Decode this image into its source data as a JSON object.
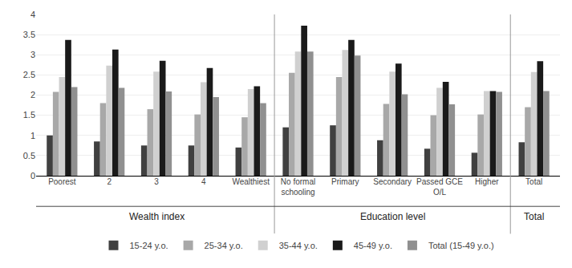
{
  "chart_data": {
    "type": "bar",
    "categories": [
      "Poorest",
      "2",
      "3",
      "4",
      "Wealthiest",
      "No formal\nschooling",
      "Primary",
      "Secondary",
      "Passed GCE\nO/L",
      "Higher",
      "Total"
    ],
    "series": [
      {
        "name": "15-24 y.o.",
        "color": "#404040",
        "values": [
          1.0,
          0.85,
          0.75,
          0.75,
          0.7,
          1.2,
          1.25,
          0.88,
          0.67,
          0.57,
          0.83
        ]
      },
      {
        "name": "25-34 y.o.",
        "color": "#a8a8a8",
        "values": [
          2.08,
          1.8,
          1.65,
          1.52,
          1.45,
          2.55,
          2.45,
          1.78,
          1.5,
          1.52,
          1.7
        ]
      },
      {
        "name": "35-44 y.o.",
        "color": "#d0d0d0",
        "values": [
          2.45,
          2.73,
          2.58,
          2.32,
          2.15,
          3.08,
          3.12,
          2.58,
          2.18,
          2.1,
          2.57
        ]
      },
      {
        "name": "45-49 y.o.",
        "color": "#1a1a1a",
        "values": [
          3.37,
          3.13,
          2.85,
          2.67,
          2.22,
          3.72,
          3.37,
          2.78,
          2.33,
          2.1,
          2.84
        ]
      },
      {
        "name": "Total (15-49 y.o.)",
        "color": "#909090",
        "values": [
          2.2,
          2.18,
          2.09,
          1.95,
          1.8,
          3.08,
          2.98,
          2.02,
          1.77,
          2.08,
          2.1
        ]
      }
    ],
    "annotations": [
      {
        "text": "Wealth index",
        "from": "Poorest",
        "to": "Wealthiest"
      },
      {
        "text": "Education level",
        "from": "No formal\nschooling",
        "to": "Higher"
      },
      {
        "text": "Total",
        "from": "Total",
        "to": "Total"
      }
    ],
    "ylim": [
      0,
      4
    ],
    "yticks": [
      0,
      0.5,
      1,
      1.5,
      2,
      2.5,
      3,
      3.5,
      4
    ],
    "grid": true,
    "legend": "bottom"
  }
}
